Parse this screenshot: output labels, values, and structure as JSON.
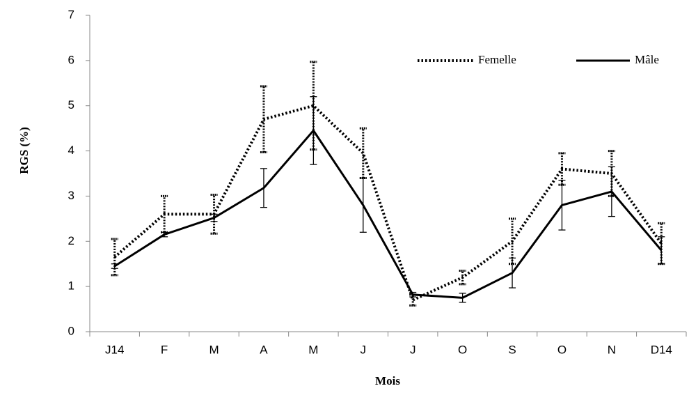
{
  "chart_data": {
    "type": "line",
    "x_label": "Mois",
    "y_label": "RGS (%)",
    "categories": [
      "J14",
      "F",
      "M",
      "A",
      "M",
      "J",
      "J",
      "O",
      "S",
      "O",
      "N",
      "D14"
    ],
    "series": [
      {
        "name": "Femelle",
        "color": "#000000",
        "linestyle": "dotted",
        "values": [
          1.65,
          2.6,
          2.6,
          4.7,
          5.0,
          3.95,
          0.7,
          1.2,
          2.0,
          3.6,
          3.5,
          1.95
        ],
        "errors": [
          0.4,
          0.4,
          0.43,
          0.73,
          0.97,
          0.55,
          0.12,
          0.15,
          0.5,
          0.35,
          0.5,
          0.45
        ]
      },
      {
        "name": "Mâle",
        "color": "#000000",
        "linestyle": "solid",
        "values": [
          1.45,
          2.15,
          2.52,
          3.18,
          4.45,
          2.8,
          0.82,
          0.75,
          1.3,
          2.8,
          3.1,
          1.8
        ],
        "errors": [
          0.05,
          0.05,
          0.08,
          0.43,
          0.75,
          0.6,
          0.05,
          0.1,
          0.33,
          0.55,
          0.55,
          0.3
        ]
      }
    ],
    "ylim": [
      0,
      7
    ],
    "yticks": [
      0,
      1,
      2,
      3,
      4,
      5,
      6,
      7
    ],
    "grid": false,
    "legend": "upper right"
  }
}
